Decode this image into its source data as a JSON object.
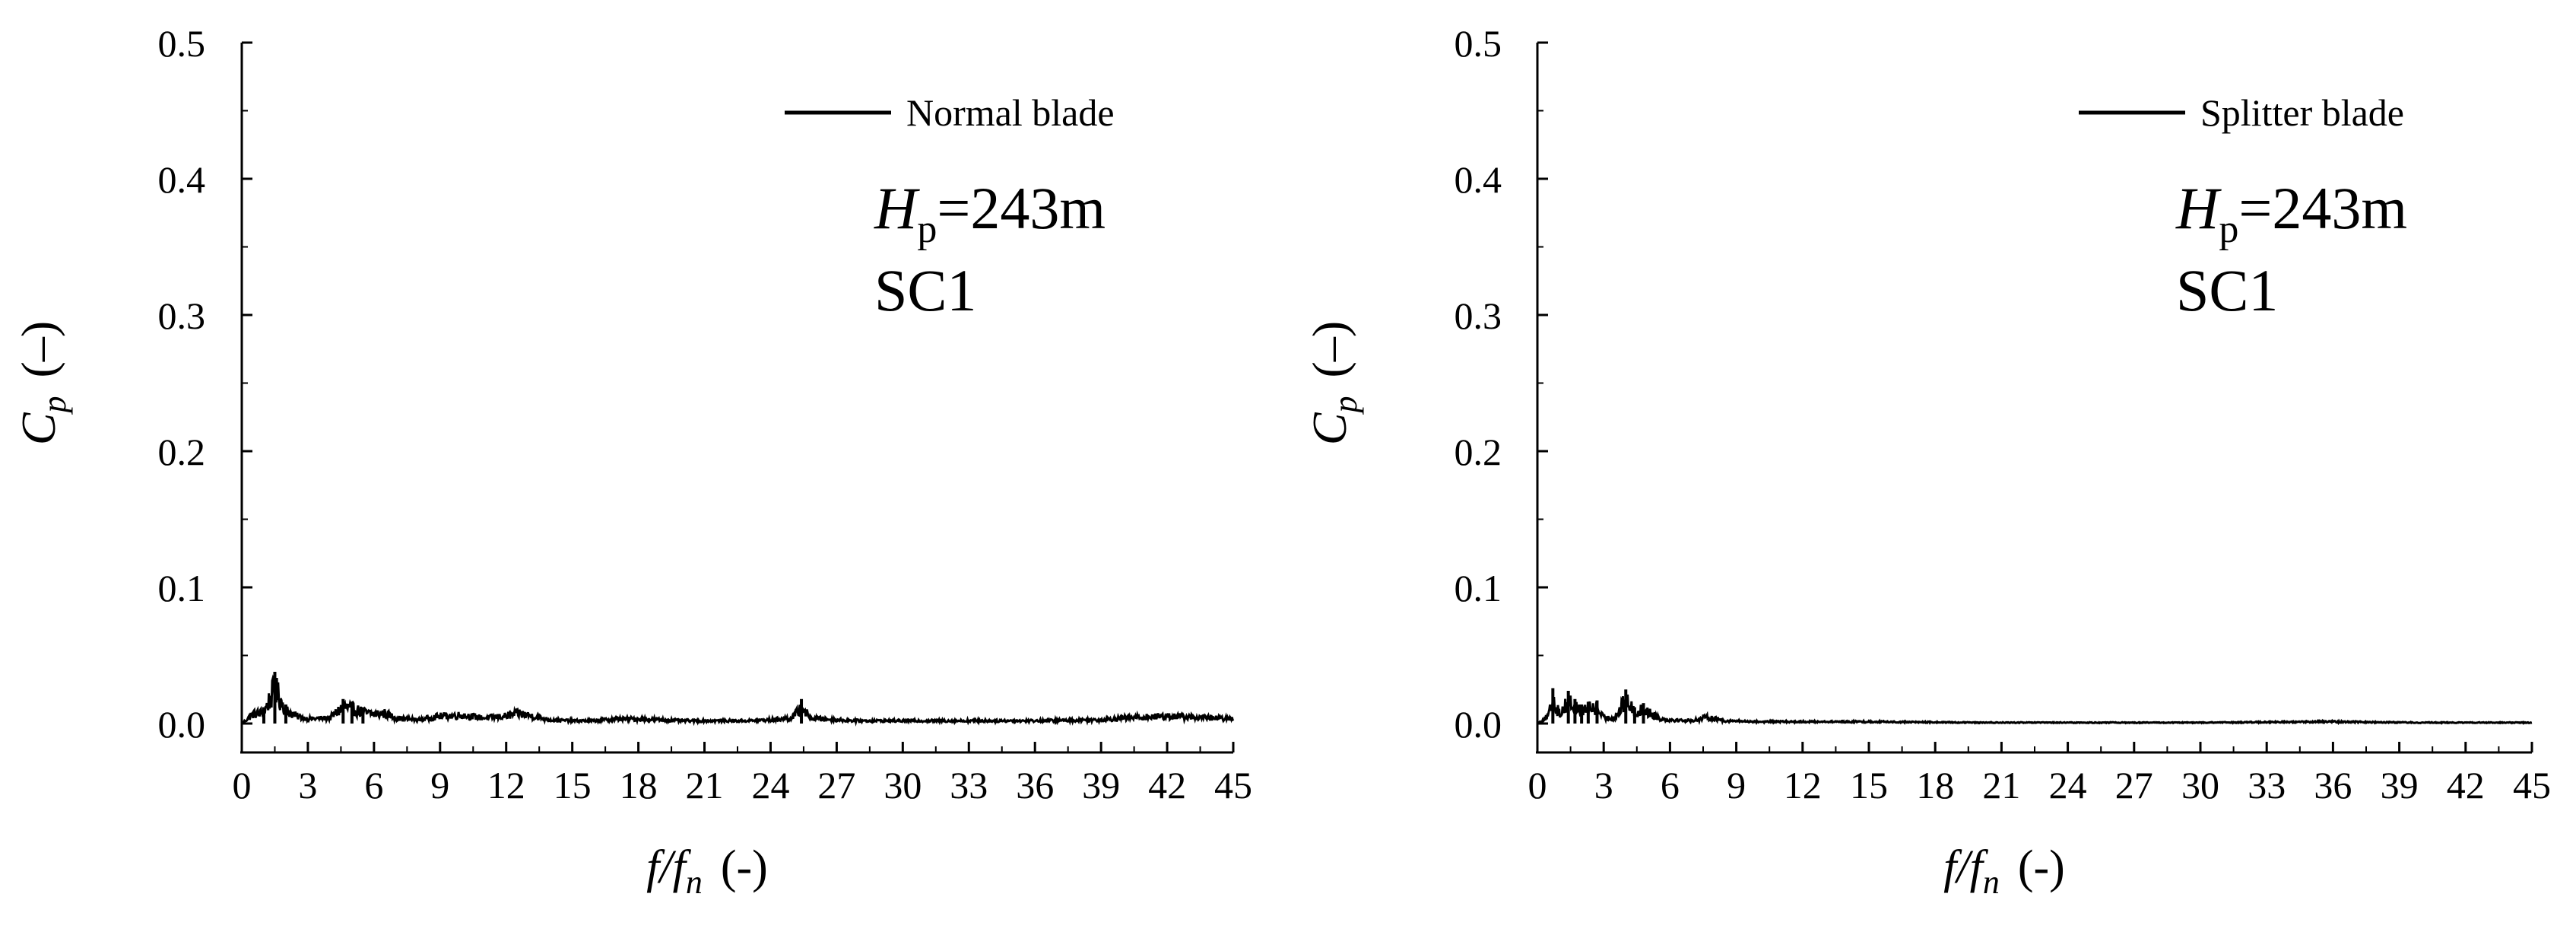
{
  "chart_data": [
    {
      "type": "line",
      "panel": "left",
      "xlabel_main": "f/f",
      "xlabel_sub": "n",
      "xlabel_units": "(-)",
      "ylabel_main": "C",
      "ylabel_sub": "p",
      "ylabel_units": "(–)",
      "xlim": [
        0,
        45
      ],
      "ylim": [
        0,
        0.5
      ],
      "xticks": [
        "0",
        "3",
        "6",
        "9",
        "12",
        "15",
        "18",
        "21",
        "24",
        "27",
        "30",
        "33",
        "36",
        "39",
        "42",
        "45"
      ],
      "yticks": [
        "0.0",
        "0.1",
        "0.2",
        "0.3",
        "0.4",
        "0.5"
      ],
      "legend": {
        "label": "Normal blade",
        "placement": "top-right"
      },
      "annotations": {
        "head_symbol": "H",
        "head_sub": "p",
        "head_value": "=243m",
        "condition": "SC1"
      },
      "series": [
        {
          "name": "Normal blade",
          "color": "#000000",
          "peaks": [
            [
              0.0,
              0.0
            ],
            [
              0.5,
              0.01
            ],
            [
              1.0,
              0.012
            ],
            [
              1.5,
              0.038
            ],
            [
              2.0,
              0.014
            ],
            [
              2.5,
              0.008
            ],
            [
              3.0,
              0.005
            ],
            [
              4.0,
              0.006
            ],
            [
              4.6,
              0.018
            ],
            [
              5.0,
              0.016
            ],
            [
              5.5,
              0.012
            ],
            [
              6.0,
              0.01
            ],
            [
              6.5,
              0.011
            ],
            [
              7.0,
              0.006
            ],
            [
              8.0,
              0.004
            ],
            [
              9.0,
              0.008
            ],
            [
              10.0,
              0.009
            ],
            [
              11.0,
              0.006
            ],
            [
              12.0,
              0.008
            ],
            [
              12.6,
              0.011
            ],
            [
              13.0,
              0.009
            ],
            [
              14.0,
              0.004
            ],
            [
              15.0,
              0.003
            ],
            [
              16.0,
              0.003
            ],
            [
              17.0,
              0.005
            ],
            [
              18.0,
              0.005
            ],
            [
              19.0,
              0.004
            ],
            [
              20.0,
              0.003
            ],
            [
              21.0,
              0.003
            ],
            [
              22.0,
              0.003
            ],
            [
              23.0,
              0.003
            ],
            [
              24.0,
              0.004
            ],
            [
              25.0,
              0.006
            ],
            [
              25.4,
              0.018
            ],
            [
              25.8,
              0.006
            ],
            [
              27.0,
              0.004
            ],
            [
              28.0,
              0.003
            ],
            [
              30.0,
              0.003
            ],
            [
              33.0,
              0.003
            ],
            [
              36.0,
              0.003
            ],
            [
              39.0,
              0.004
            ],
            [
              40.0,
              0.006
            ],
            [
              41.0,
              0.007
            ],
            [
              42.0,
              0.008
            ],
            [
              43.0,
              0.007
            ],
            [
              44.0,
              0.006
            ],
            [
              45.0,
              0.005
            ]
          ]
        }
      ]
    },
    {
      "type": "line",
      "panel": "right",
      "xlabel_main": "f/f",
      "xlabel_sub": "n",
      "xlabel_units": "(-)",
      "ylabel_main": "C",
      "ylabel_sub": "p",
      "ylabel_units": "(–)",
      "xlim": [
        0,
        45
      ],
      "ylim": [
        0,
        0.5
      ],
      "xticks": [
        "0",
        "3",
        "6",
        "9",
        "12",
        "15",
        "18",
        "21",
        "24",
        "27",
        "30",
        "33",
        "36",
        "39",
        "42",
        "45"
      ],
      "yticks": [
        "0.0",
        "0.1",
        "0.2",
        "0.3",
        "0.4",
        "0.5"
      ],
      "legend": {
        "label": "Splitter blade",
        "placement": "top-right"
      },
      "annotations": {
        "head_symbol": "H",
        "head_sub": "p",
        "head_value": "=243m",
        "condition": "SC1"
      },
      "series": [
        {
          "name": "Splitter blade",
          "color": "#000000",
          "peaks": [
            [
              0.0,
              0.0
            ],
            [
              0.5,
              0.008
            ],
            [
              0.7,
              0.026
            ],
            [
              1.0,
              0.01
            ],
            [
              1.4,
              0.024
            ],
            [
              1.7,
              0.018
            ],
            [
              2.0,
              0.014
            ],
            [
              2.3,
              0.016
            ],
            [
              2.7,
              0.017
            ],
            [
              3.0,
              0.006
            ],
            [
              3.5,
              0.006
            ],
            [
              4.0,
              0.025
            ],
            [
              4.4,
              0.012
            ],
            [
              4.8,
              0.015
            ],
            [
              5.2,
              0.01
            ],
            [
              5.6,
              0.005
            ],
            [
              6.0,
              0.004
            ],
            [
              7.0,
              0.003
            ],
            [
              7.7,
              0.007
            ],
            [
              8.5,
              0.003
            ],
            [
              10.0,
              0.002
            ],
            [
              12.0,
              0.002
            ],
            [
              15.0,
              0.002
            ],
            [
              20.0,
              0.001
            ],
            [
              25.0,
              0.001
            ],
            [
              30.0,
              0.001
            ],
            [
              36.0,
              0.002
            ],
            [
              40.0,
              0.001
            ],
            [
              45.0,
              0.001
            ]
          ]
        }
      ]
    }
  ]
}
